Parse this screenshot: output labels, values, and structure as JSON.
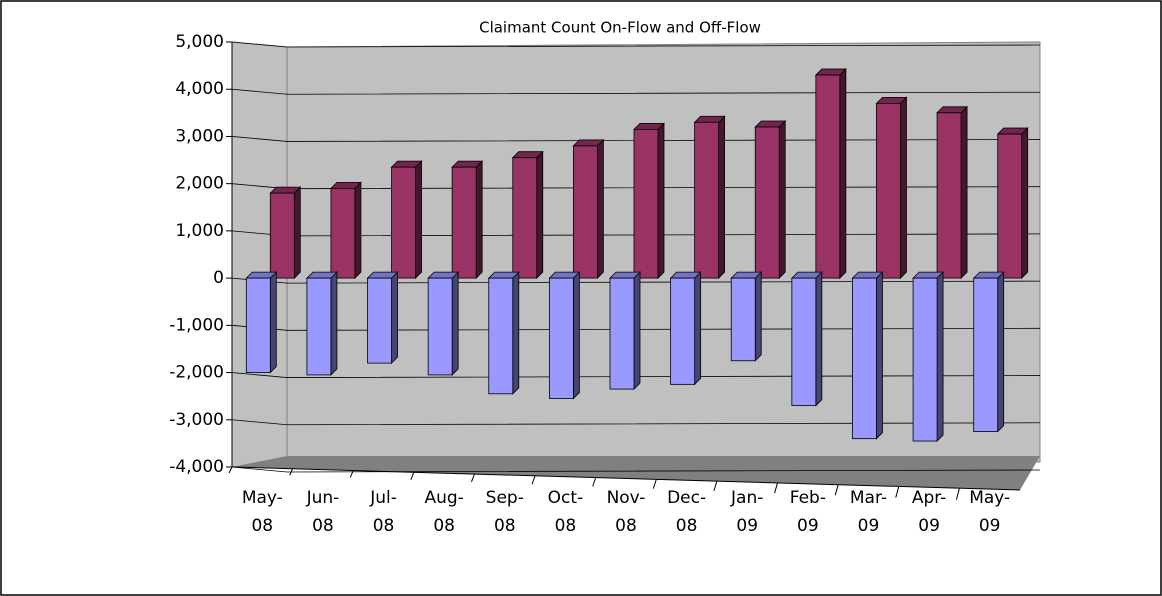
{
  "chart_data": {
    "type": "bar3d",
    "title": "Claimant Count On-Flow and Off-Flow",
    "categories": [
      "May-08",
      "Jun-08",
      "Jul-08",
      "Aug-08",
      "Sep-08",
      "Oct-08",
      "Nov-08",
      "Dec-08",
      "Jan-09",
      "Feb-09",
      "Mar-09",
      "Apr-09",
      "May-09"
    ],
    "series": [
      {
        "color": "#993366",
        "values": [
          1800,
          1900,
          2350,
          2350,
          2550,
          2800,
          3150,
          3300,
          3200,
          4300,
          3700,
          3500,
          3050
        ]
      },
      {
        "color": "#9999ff",
        "values": [
          -2000,
          -2050,
          -1800,
          -2050,
          -2450,
          -2550,
          -2350,
          -2250,
          -1750,
          -2700,
          -3400,
          -3450,
          -3250
        ]
      }
    ],
    "ylim": [
      -4000,
      5000
    ],
    "yticks": [
      {
        "value": -4000,
        "label": "-4,000"
      },
      {
        "value": -3000,
        "label": "-3,000"
      },
      {
        "value": -2000,
        "label": "-2,000"
      },
      {
        "value": -1000,
        "label": "-1,000"
      },
      0,
      {
        "value": 1000,
        "label": "1,000"
      },
      {
        "value": 2000,
        "label": "2,000"
      },
      {
        "value": 3000,
        "label": "3,000"
      },
      {
        "value": 4000,
        "label": "4,000"
      },
      {
        "value": 5000,
        "label": "5,000"
      }
    ],
    "grid": true
  }
}
